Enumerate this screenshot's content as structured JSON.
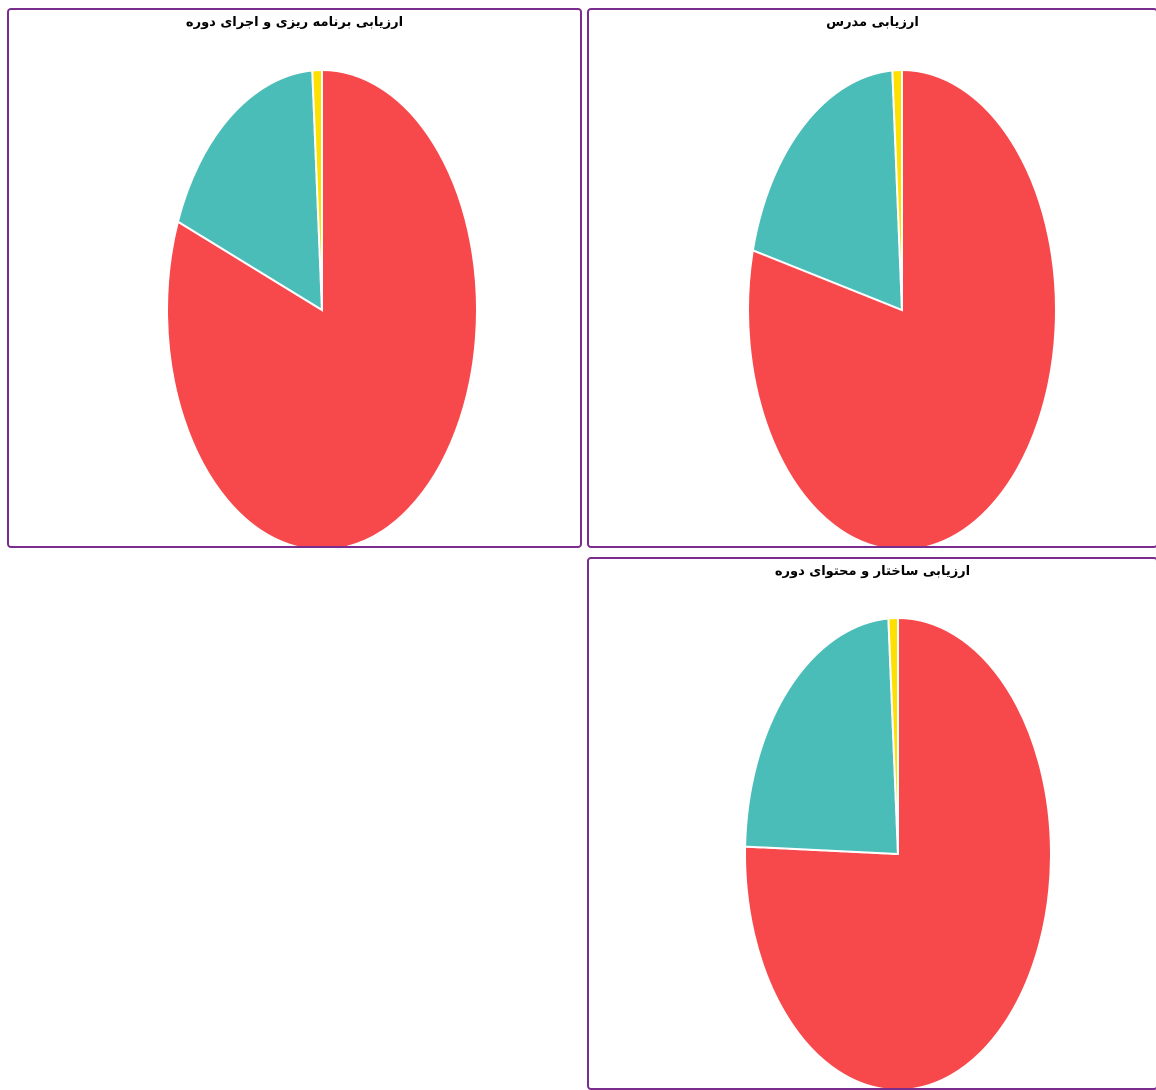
{
  "chart_data": [
    {
      "type": "pie",
      "title": "ارزیابی مدرس",
      "values": [
        79,
        20,
        1
      ],
      "colors": [
        "#f7484b",
        "#4bbdb8",
        "#fde000"
      ],
      "legend": "none"
    },
    {
      "type": "pie",
      "title": "ارزیابی برنامه ریزی و اجرای دوره",
      "values": [
        81,
        18,
        1
      ],
      "colors": [
        "#f7484b",
        "#4bbdb8",
        "#fde000"
      ],
      "legend": "none"
    },
    {
      "type": "pie",
      "title": "ارزیابی ساختار و محتوای دوره",
      "values": [
        75.5,
        23.5,
        1
      ],
      "colors": [
        "#f7484b",
        "#4bbdb8",
        "#fde000"
      ],
      "legend": "none"
    }
  ]
}
